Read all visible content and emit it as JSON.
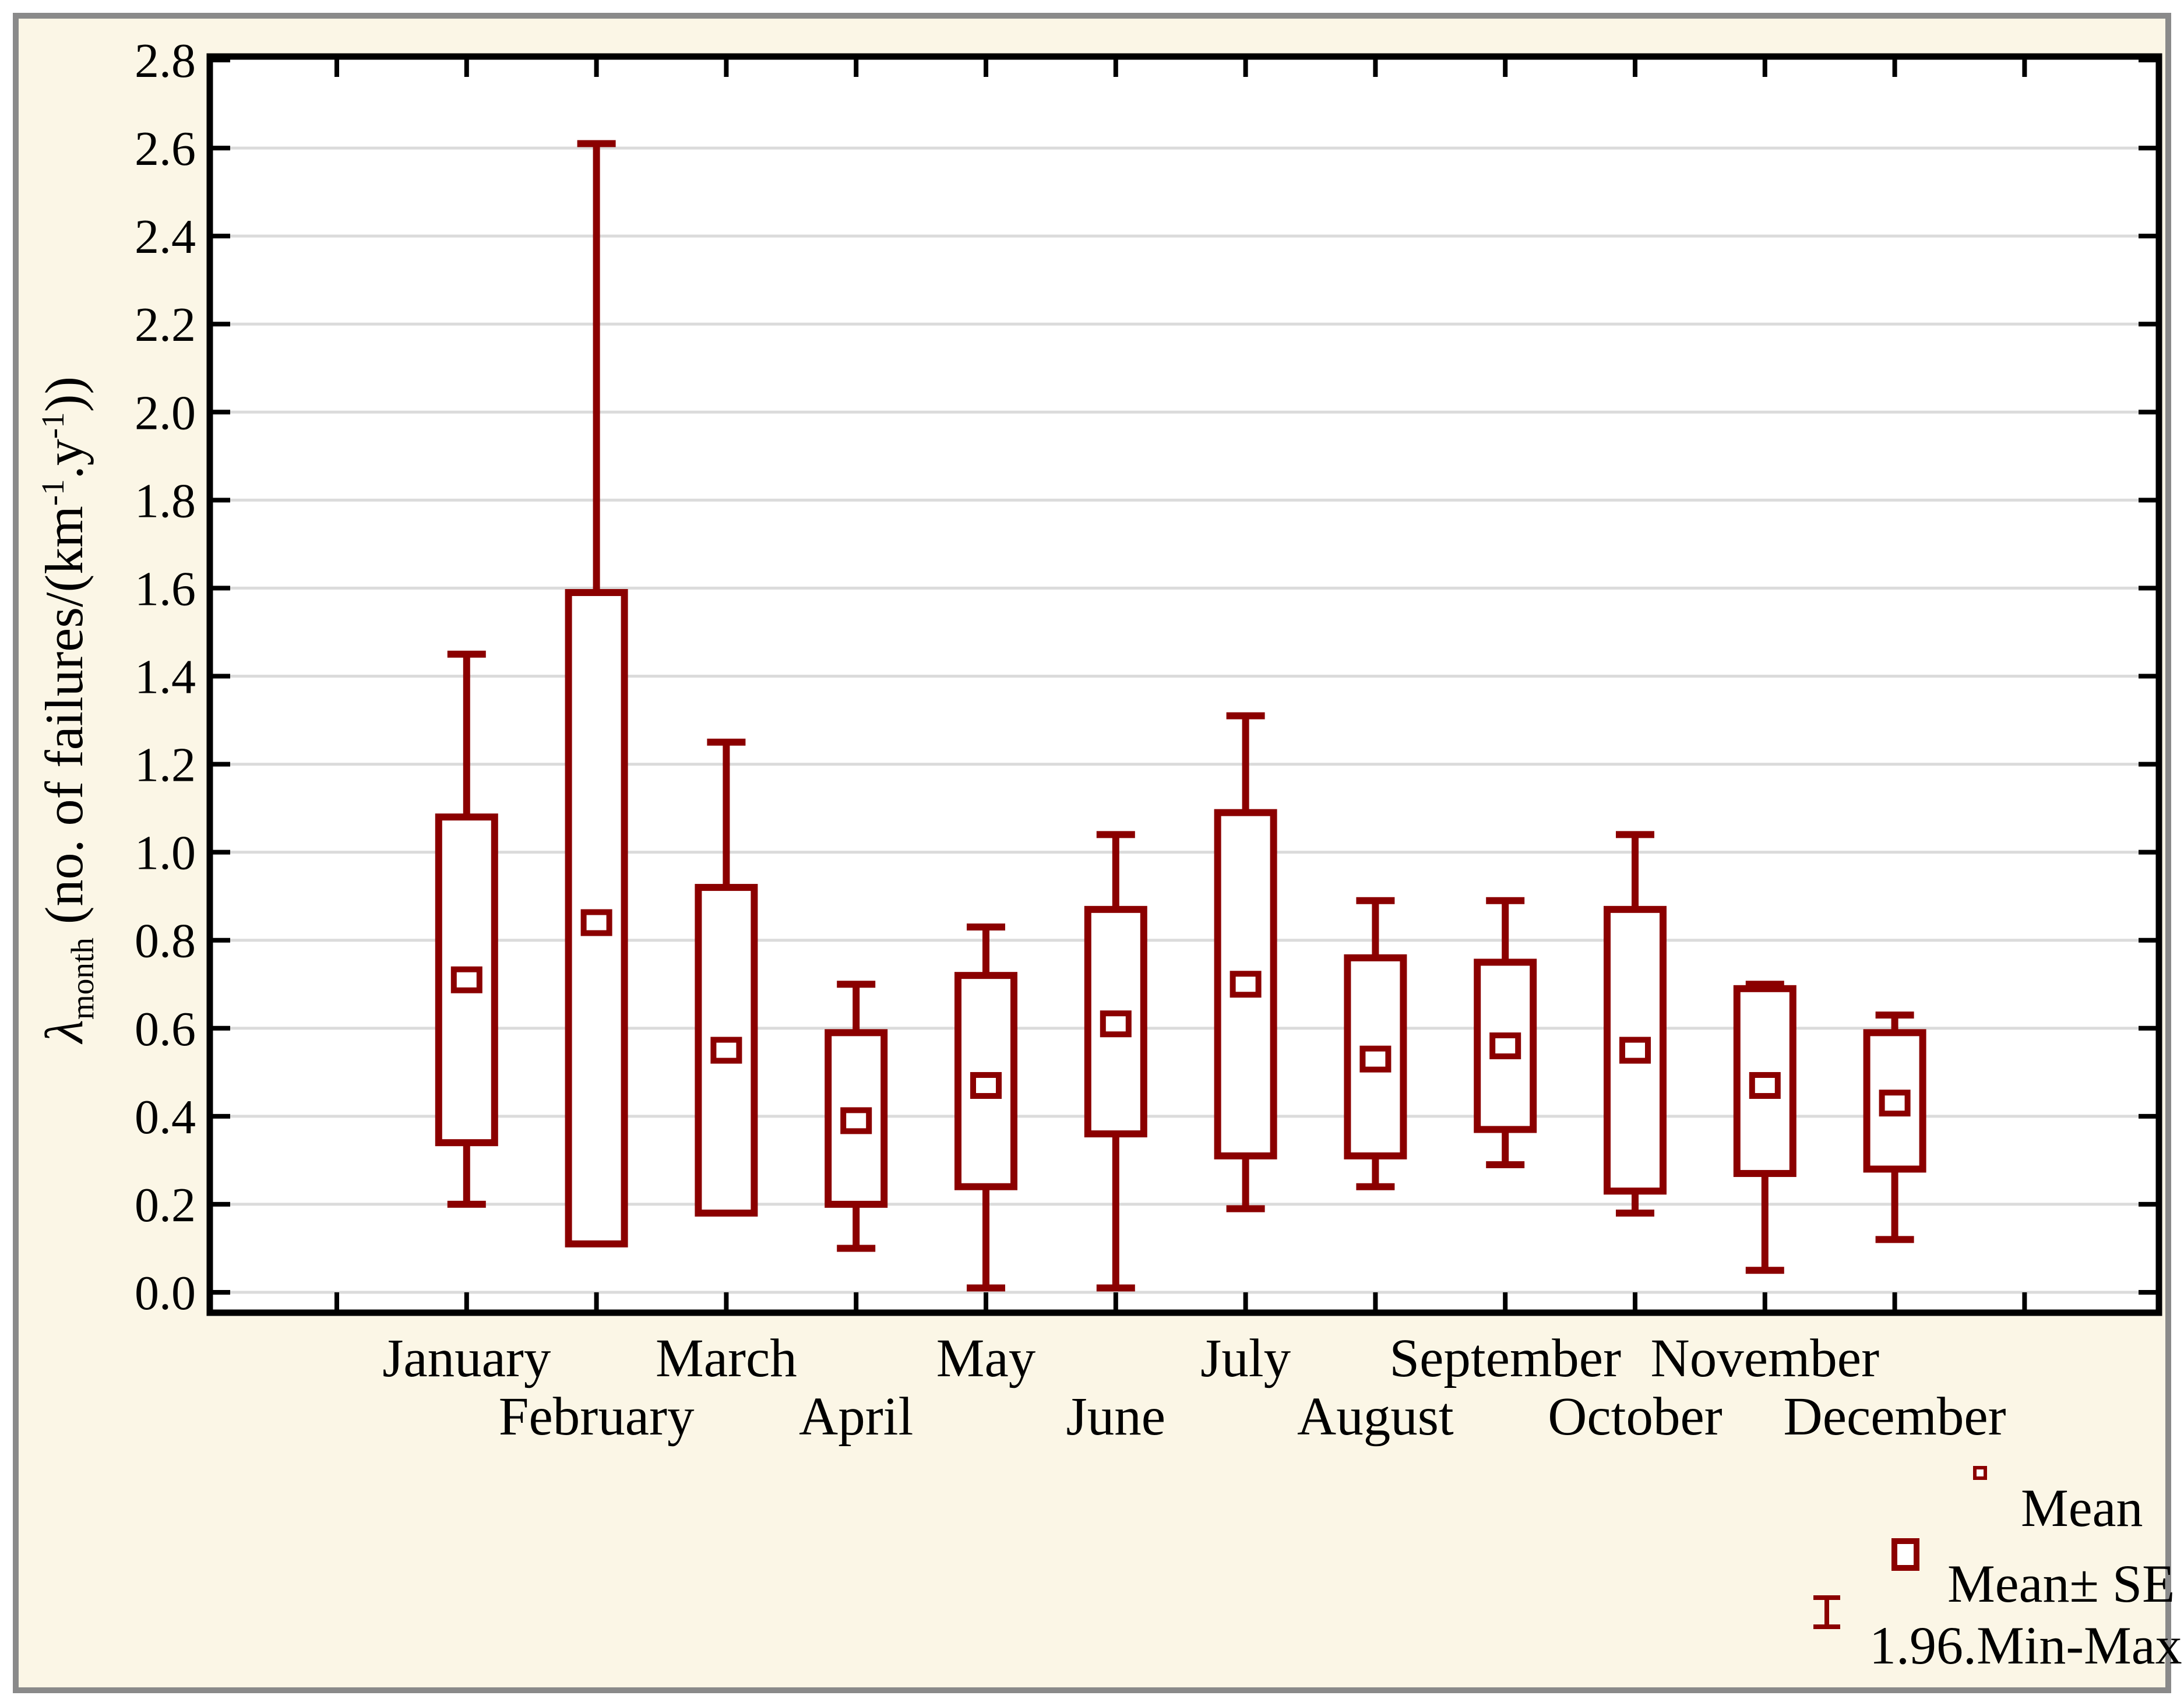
{
  "window": {
    "background": "#FFFFFF",
    "panel_background": "#FBF6E6",
    "panel_border_color": "#8A8A8A"
  },
  "chart_data": {
    "type": "box",
    "variant": "mean / mean±SE box / min-max whiskers",
    "title": "",
    "xlabel": "",
    "ylabel_parts": {
      "lambda": "λ",
      "sub": "month",
      "rest1": " (no. of failures/(km",
      "sup1": "-1",
      "rest2": ".y",
      "sup2": "-1",
      "rest3": "))"
    },
    "ylim": [
      0,
      2.8
    ],
    "grid": "horizontal",
    "gridline_color": "#DBDBDB",
    "frame_color": "#000000",
    "plot_background": "#FFFFFF",
    "accent_color": "#8B0000",
    "y_ticks": [
      {
        "value": 2.8,
        "label": "2.8"
      },
      {
        "value": 2.6,
        "label": "2.6"
      },
      {
        "value": 2.4,
        "label": "2.4"
      },
      {
        "value": 2.2,
        "label": "2.2"
      },
      {
        "value": 2.0,
        "label": "2.0"
      },
      {
        "value": 1.8,
        "label": "1.8"
      },
      {
        "value": 1.6,
        "label": "1.6"
      },
      {
        "value": 1.4,
        "label": "1.4"
      },
      {
        "value": 1.2,
        "label": "1.2"
      },
      {
        "value": 1.0,
        "label": "1.0"
      },
      {
        "value": 0.8,
        "label": "0.8"
      },
      {
        "value": 0.6,
        "label": "0.6"
      },
      {
        "value": 0.4,
        "label": "0.4"
      },
      {
        "value": 0.2,
        "label": "0.2"
      },
      {
        "value": 0.0,
        "label": "0.0"
      }
    ],
    "months": [
      {
        "name": "January",
        "label_row": 1,
        "mean": 0.71,
        "se_low": 0.34,
        "se_high": 1.08,
        "min": 0.2,
        "max": 1.45
      },
      {
        "name": "February",
        "label_row": 2,
        "mean": 0.84,
        "se_low": 0.11,
        "se_high": 1.59,
        "min": null,
        "max": 2.61
      },
      {
        "name": "March",
        "label_row": 1,
        "mean": 0.55,
        "se_low": 0.18,
        "se_high": 0.92,
        "min": null,
        "max": 1.25
      },
      {
        "name": "April",
        "label_row": 2,
        "mean": 0.39,
        "se_low": 0.2,
        "se_high": 0.59,
        "min": 0.1,
        "max": 0.7
      },
      {
        "name": "May",
        "label_row": 1,
        "mean": 0.47,
        "se_low": 0.24,
        "se_high": 0.72,
        "min": 0.01,
        "max": 0.83
      },
      {
        "name": "June",
        "label_row": 2,
        "mean": 0.61,
        "se_low": 0.36,
        "se_high": 0.87,
        "min": 0.01,
        "max": 1.04
      },
      {
        "name": "July",
        "label_row": 1,
        "mean": 0.7,
        "se_low": 0.31,
        "se_high": 1.09,
        "min": 0.19,
        "max": 1.31
      },
      {
        "name": "August",
        "label_row": 2,
        "mean": 0.53,
        "se_low": 0.31,
        "se_high": 0.76,
        "min": 0.24,
        "max": 0.89
      },
      {
        "name": "September",
        "label_row": 1,
        "mean": 0.56,
        "se_low": 0.37,
        "se_high": 0.75,
        "min": 0.29,
        "max": 0.89
      },
      {
        "name": "October",
        "label_row": 2,
        "mean": 0.55,
        "se_low": 0.23,
        "se_high": 0.87,
        "min": 0.18,
        "max": 1.04
      },
      {
        "name": "November",
        "label_row": 1,
        "mean": 0.47,
        "se_low": 0.27,
        "se_high": 0.69,
        "min": 0.05,
        "max": 0.7
      },
      {
        "name": "December",
        "label_row": 2,
        "mean": 0.43,
        "se_low": 0.28,
        "se_high": 0.59,
        "min": 0.12,
        "max": 0.63
      }
    ],
    "legend_position": "bottom-right"
  },
  "legend": {
    "items": [
      {
        "symbol": "mean-square-small",
        "label": "Mean"
      },
      {
        "symbol": "mean-se-square",
        "label": "Mean± SE"
      },
      {
        "symbol": "min-max-whisker",
        "label": "1.96.Min-Max"
      }
    ]
  }
}
